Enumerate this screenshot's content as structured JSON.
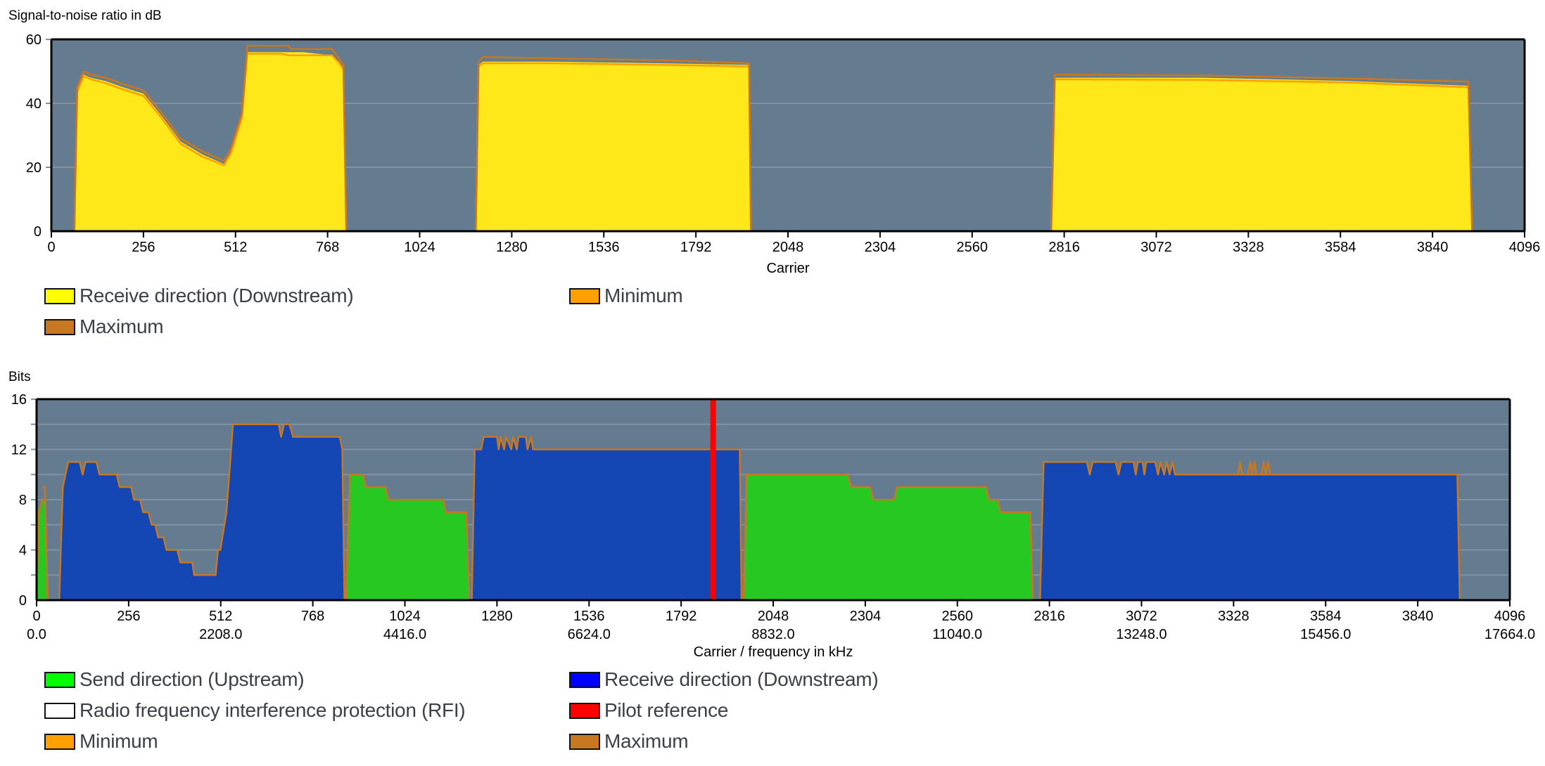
{
  "chart_data": [
    {
      "type": "area",
      "ylabel": "Signal-to-noise ratio in dB",
      "xlabel": "Carrier",
      "xlim": [
        0,
        4096
      ],
      "ylim": [
        0,
        60
      ],
      "yticks": [
        "0",
        "20",
        "40",
        "60"
      ],
      "ytick_values": [
        0,
        20,
        40,
        60
      ],
      "xticks": [
        "0",
        "256",
        "512",
        "768",
        "1024",
        "1280",
        "1536",
        "1792",
        "2048",
        "2304",
        "2560",
        "2816",
        "3072",
        "3328",
        "3584",
        "3840",
        "4096"
      ],
      "grid": true,
      "colors": {
        "plot_bg": "#657b8f",
        "grid": "#8093a5",
        "receive": "#ffe81a",
        "min": "#ff9f00",
        "max": "#c87820"
      },
      "series": [
        {
          "name": "Receive direction (Downstream)",
          "key": "receive",
          "points": [
            [
              0,
              0
            ],
            [
              64,
              0
            ],
            [
              72,
              44
            ],
            [
              90,
              49
            ],
            [
              110,
              48
            ],
            [
              150,
              47
            ],
            [
              200,
              45
            ],
            [
              256,
              43
            ],
            [
              300,
              37
            ],
            [
              360,
              28
            ],
            [
              420,
              24
            ],
            [
              480,
              21
            ],
            [
              500,
              25
            ],
            [
              530,
              36
            ],
            [
              545,
              56
            ],
            [
              700,
              56
            ],
            [
              780,
              55
            ],
            [
              800,
              53
            ],
            [
              812,
              51
            ],
            [
              820,
              0
            ],
            [
              1180,
              0
            ],
            [
              1188,
              52
            ],
            [
              1200,
              53
            ],
            [
              1400,
              53
            ],
            [
              1700,
              52.5
            ],
            [
              1940,
              52
            ],
            [
              1945,
              0
            ],
            [
              2780,
              0
            ],
            [
              2790,
              48
            ],
            [
              3200,
              48
            ],
            [
              3600,
              47
            ],
            [
              3940,
              45.5
            ],
            [
              3950,
              0
            ],
            [
              4096,
              0
            ]
          ]
        },
        {
          "name": "Minimum",
          "key": "min",
          "points": [
            [
              0,
              0
            ],
            [
              64,
              0
            ],
            [
              72,
              43.5
            ],
            [
              90,
              48.5
            ],
            [
              110,
              47.5
            ],
            [
              150,
              46.3
            ],
            [
              200,
              44.3
            ],
            [
              256,
              42.3
            ],
            [
              300,
              36.3
            ],
            [
              360,
              27.3
            ],
            [
              420,
              23.3
            ],
            [
              480,
              20.6
            ],
            [
              500,
              24.5
            ],
            [
              530,
              35.5
            ],
            [
              545,
              55.5
            ],
            [
              640,
              55.5
            ],
            [
              660,
              55
            ],
            [
              780,
              55
            ],
            [
              800,
              52.5
            ],
            [
              812,
              50.5
            ],
            [
              820,
              0
            ],
            [
              1180,
              0
            ],
            [
              1188,
              51.5
            ],
            [
              1200,
              52.5
            ],
            [
              1400,
              52.5
            ],
            [
              1700,
              52
            ],
            [
              1940,
              51.5
            ],
            [
              1945,
              0
            ],
            [
              2780,
              0
            ],
            [
              2790,
              47.5
            ],
            [
              3200,
              47.3
            ],
            [
              3600,
              46.5
            ],
            [
              3940,
              45
            ],
            [
              3950,
              0
            ],
            [
              4096,
              0
            ]
          ]
        },
        {
          "name": "Maximum",
          "key": "max",
          "points": [
            [
              0,
              0
            ],
            [
              64,
              0
            ],
            [
              72,
              45
            ],
            [
              90,
              50
            ],
            [
              110,
              49
            ],
            [
              150,
              48
            ],
            [
              200,
              46
            ],
            [
              256,
              44
            ],
            [
              300,
              38
            ],
            [
              360,
              29
            ],
            [
              420,
              25
            ],
            [
              480,
              22
            ],
            [
              500,
              26
            ],
            [
              530,
              37
            ],
            [
              545,
              58
            ],
            [
              660,
              58
            ],
            [
              665,
              57
            ],
            [
              780,
              57
            ],
            [
              800,
              54
            ],
            [
              812,
              52
            ],
            [
              820,
              0
            ],
            [
              1180,
              0
            ],
            [
              1188,
              53
            ],
            [
              1200,
              54.5
            ],
            [
              1400,
              54
            ],
            [
              1700,
              53.5
            ],
            [
              1940,
              52.5
            ],
            [
              1945,
              0
            ],
            [
              2780,
              0
            ],
            [
              2790,
              49
            ],
            [
              3200,
              48.7
            ],
            [
              3600,
              47.8
            ],
            [
              3940,
              46.8
            ],
            [
              3950,
              0
            ],
            [
              4096,
              0
            ]
          ]
        }
      ],
      "legend": [
        {
          "label": "Receive direction (Downstream)",
          "color": "#ffff00"
        },
        {
          "label": "Minimum",
          "color": "#ff9f00"
        },
        {
          "label": "Maximum",
          "color": "#c87820"
        }
      ]
    },
    {
      "type": "area",
      "ylabel": "Bits",
      "xlabel": "Carrier / frequency in kHz",
      "xlim": [
        0,
        4096
      ],
      "ylim": [
        0,
        16
      ],
      "yticks": [
        "0",
        "4",
        "8",
        "12",
        "16"
      ],
      "ytick_values": [
        0,
        4,
        8,
        12,
        16
      ],
      "minor_ytick_values": [
        2,
        6,
        10,
        14
      ],
      "xticks": [
        "0",
        "256",
        "512",
        "768",
        "1024",
        "1280",
        "1536",
        "1792",
        "2048",
        "2304",
        "2560",
        "2816",
        "3072",
        "3328",
        "3584",
        "3840",
        "4096"
      ],
      "freq_ticks": [
        "0.0",
        "2208.0",
        "4416.0",
        "6624.0",
        "8832.0",
        "11040.0",
        "13248.0",
        "15456.0",
        "17664.0"
      ],
      "grid": true,
      "pilot_carrier": 1881,
      "colors": {
        "plot_bg": "#657b8f",
        "grid": "#8093a5",
        "upstream": "#28c823",
        "downstream": "#1446b4",
        "pilot": "#ff0000",
        "min": "#ff9f00",
        "max": "#c87820"
      },
      "series": [
        {
          "name": "Send direction (Upstream)",
          "key": "upstream",
          "points": [
            [
              0,
              0
            ],
            [
              6,
              7
            ],
            [
              16,
              8
            ],
            [
              23,
              8
            ],
            [
              31,
              0
            ],
            [
              860,
              0
            ],
            [
              871,
              10
            ],
            [
              908,
              10
            ],
            [
              915,
              9
            ],
            [
              970,
              9
            ],
            [
              978,
              8
            ],
            [
              1131,
              8
            ],
            [
              1138,
              7
            ],
            [
              1195,
              7
            ],
            [
              1203,
              0
            ],
            [
              1966,
              0
            ],
            [
              1974,
              10
            ],
            [
              2256,
              10
            ],
            [
              2265,
              9
            ],
            [
              2318,
              9
            ],
            [
              2326,
              8
            ],
            [
              2384,
              8
            ],
            [
              2392,
              9
            ],
            [
              2640,
              9
            ],
            [
              2648,
              8
            ],
            [
              2672,
              8
            ],
            [
              2680,
              7
            ],
            [
              2763,
              7
            ],
            [
              2770,
              0
            ]
          ]
        },
        {
          "name": "Receive direction (Downstream)",
          "key": "downstream",
          "points": [
            [
              31,
              0
            ],
            [
              63,
              0
            ],
            [
              73,
              9
            ],
            [
              88,
              11
            ],
            [
              120,
              11
            ],
            [
              128,
              10
            ],
            [
              136,
              11
            ],
            [
              166,
              11
            ],
            [
              175,
              10
            ],
            [
              223,
              10
            ],
            [
              231,
              9
            ],
            [
              263,
              9
            ],
            [
              271,
              8
            ],
            [
              288,
              8
            ],
            [
              296,
              7
            ],
            [
              311,
              7
            ],
            [
              320,
              6
            ],
            [
              330,
              6
            ],
            [
              338,
              5
            ],
            [
              353,
              5
            ],
            [
              361,
              4
            ],
            [
              391,
              4
            ],
            [
              400,
              3
            ],
            [
              433,
              3
            ],
            [
              438,
              2
            ],
            [
              498,
              2
            ],
            [
              504,
              4
            ],
            [
              511,
              4
            ],
            [
              528,
              7
            ],
            [
              546,
              14
            ],
            [
              673,
              14
            ],
            [
              680,
              13
            ],
            [
              688,
              14
            ],
            [
              703,
              14
            ],
            [
              713,
              13
            ],
            [
              843,
              13
            ],
            [
              850,
              12
            ],
            [
              856,
              0
            ],
            [
              860,
              0
            ],
            [
              1203,
              0
            ],
            [
              1210,
              0
            ],
            [
              1218,
              12
            ],
            [
              1236,
              12
            ],
            [
              1243,
              13
            ],
            [
              1280,
              13
            ],
            [
              1285,
              12
            ],
            [
              1290,
              13
            ],
            [
              1300,
              12
            ],
            [
              1305,
              13
            ],
            [
              1320,
              12
            ],
            [
              1325,
              13
            ],
            [
              1335,
              12
            ],
            [
              1340,
              13
            ],
            [
              1360,
              13
            ],
            [
              1365,
              12
            ],
            [
              1375,
              13
            ],
            [
              1380,
              12
            ],
            [
              1955,
              12
            ],
            [
              1960,
              0
            ],
            [
              1966,
              0
            ],
            [
              2770,
              0
            ],
            [
              2790,
              0
            ],
            [
              2800,
              11
            ],
            [
              2920,
              11
            ],
            [
              2928,
              10
            ],
            [
              2936,
              11
            ],
            [
              3000,
              11
            ],
            [
              3008,
              10
            ],
            [
              3016,
              11
            ],
            [
              3050,
              11
            ],
            [
              3056,
              10
            ],
            [
              3062,
              11
            ],
            [
              3075,
              11
            ],
            [
              3080,
              10
            ],
            [
              3085,
              11
            ],
            [
              3110,
              11
            ],
            [
              3118,
              10
            ],
            [
              3125,
              11
            ],
            [
              3135,
              10
            ],
            [
              3142,
              11
            ],
            [
              3150,
              10
            ],
            [
              3158,
              11
            ],
            [
              3165,
              10
            ],
            [
              3200,
              10
            ],
            [
              3950,
              10
            ],
            [
              3957,
              0
            ],
            [
              4096,
              0
            ]
          ]
        },
        {
          "name": "Maximum",
          "key": "max",
          "points": [
            [
              16,
              9
            ],
            [
              23,
              9
            ],
            [
              31,
              0
            ]
          ]
        },
        {
          "name": "Maximum",
          "key": "max",
          "points": [
            [
              3340,
              10
            ],
            [
              3346,
              11
            ],
            [
              3352,
              10
            ],
            [
              3368,
              10
            ],
            [
              3374,
              11
            ],
            [
              3380,
              10
            ],
            [
              3386,
              11
            ],
            [
              3392,
              10
            ],
            [
              3406,
              10
            ],
            [
              3412,
              11
            ],
            [
              3418,
              10
            ],
            [
              3424,
              11
            ],
            [
              3430,
              10
            ]
          ]
        }
      ],
      "legend": [
        {
          "label": "Send direction (Upstream)",
          "color": "#00ff00"
        },
        {
          "label": "Receive direction (Downstream)",
          "color": "#0000ff"
        },
        {
          "label": "Radio frequency interference protection (RFI)",
          "color": "#ffffff"
        },
        {
          "label": "Pilot reference",
          "color": "#ff0000"
        },
        {
          "label": "Minimum",
          "color": "#ff9f00"
        },
        {
          "label": "Maximum",
          "color": "#c87820"
        }
      ]
    }
  ]
}
